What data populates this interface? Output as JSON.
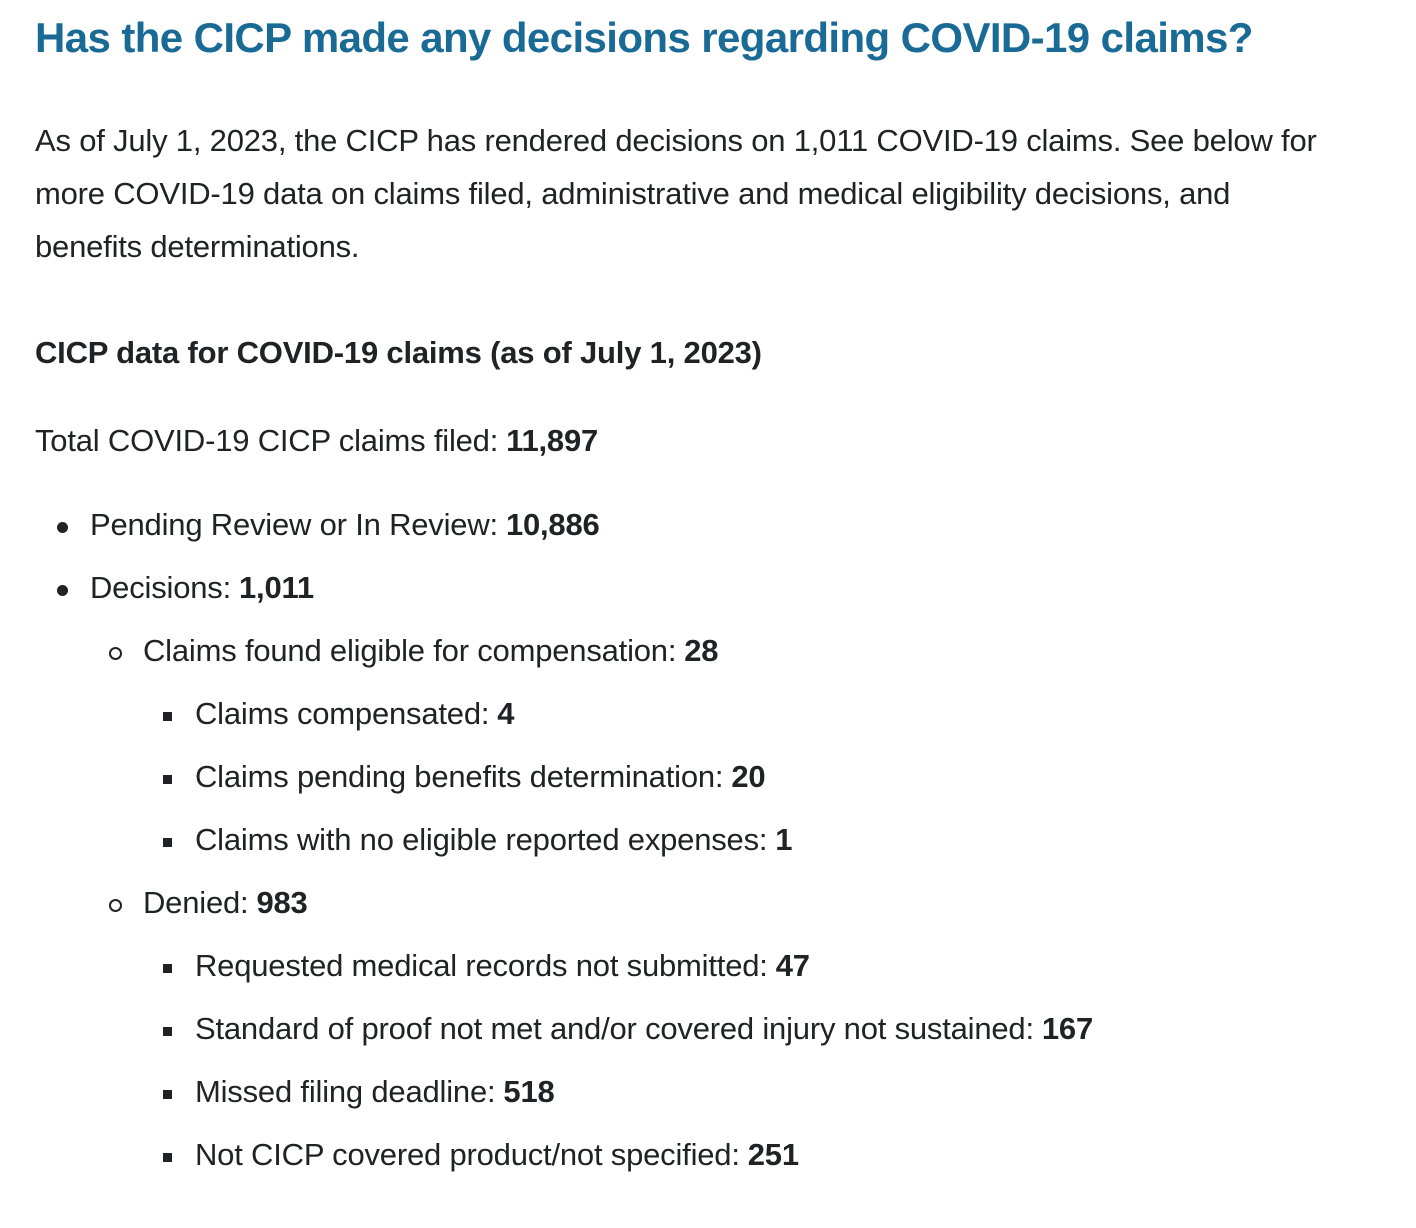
{
  "page": {
    "heading": "Has the CICP made any decisions regarding COVID-19 claims?",
    "intro_lines": [
      "As of July 1, 2023, the CICP has rendered decisions on 1,011 COVID-19 claims. See below for",
      "more COVID-19 data on claims filed, administrative and medical eligibility decisions, and",
      "benefits determinations."
    ],
    "subheading": "CICP data for COVID-19 claims (as of July 1, 2023)",
    "total": {
      "label": "Total COVID-19 CICP claims filed:",
      "value": "11,897"
    },
    "colors": {
      "heading": "#1a6a96",
      "text": "#212226"
    }
  },
  "list": {
    "items": [
      {
        "level": 1,
        "label": "Pending Review or In Review:",
        "value": "10,886"
      },
      {
        "level": 1,
        "label": "Decisions:",
        "value": "1,011"
      },
      {
        "level": 2,
        "label": "Claims found eligible for compensation:",
        "value": "28"
      },
      {
        "level": 3,
        "label": "Claims compensated:",
        "value": "4"
      },
      {
        "level": 3,
        "label": "Claims pending benefits determination:",
        "value": "20"
      },
      {
        "level": 3,
        "label": "Claims with no eligible reported expenses:",
        "value": "1"
      },
      {
        "level": 2,
        "label": "Denied:",
        "value": "983"
      },
      {
        "level": 3,
        "label": "Requested medical records not submitted:",
        "value": "47"
      },
      {
        "level": 3,
        "label": "Standard of proof not met and/or covered injury not sustained:",
        "value": "167"
      },
      {
        "level": 3,
        "label": "Missed filing deadline:",
        "value": "518"
      },
      {
        "level": 3,
        "label": "Not CICP covered product/not specified:",
        "value": "251"
      }
    ]
  }
}
